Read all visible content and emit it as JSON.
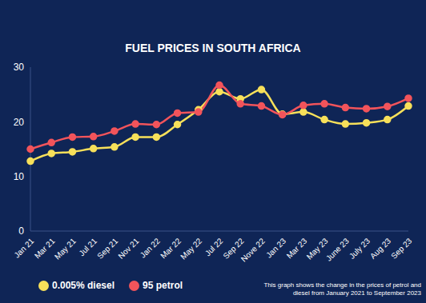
{
  "chart_data": {
    "type": "line",
    "title": "FUEL PRICES IN SOUTH AFRICA",
    "annotation": "This graph shows the change in the prices of petrol and diesel from January 2021 to September 2023",
    "categories": [
      "Jan 21",
      "Mar 21",
      "May 21",
      "Jul 21",
      "Sep 21",
      "Nov 21",
      "Jan 22",
      "Mar 22",
      "May 22",
      "Jul 22",
      "Sep 22",
      "Nove 22",
      "Jan 23",
      "Mar 23",
      "May 23",
      "June 23",
      "July 23",
      "Aug 23",
      "Sep 23"
    ],
    "series": [
      {
        "name": "0.005% diesel",
        "color": "#f7e05a",
        "values": [
          12.8,
          14.2,
          14.5,
          15.1,
          15.4,
          17.2,
          17.2,
          19.5,
          22.2,
          25.5,
          24.2,
          25.9,
          21.4,
          21.8,
          20.4,
          19.6,
          19.8,
          20.4,
          22.9
        ]
      },
      {
        "name": "95 petrol",
        "color": "#f2545b",
        "values": [
          15.0,
          16.2,
          17.2,
          17.3,
          18.3,
          19.6,
          19.5,
          21.6,
          21.8,
          26.7,
          23.3,
          22.9,
          21.3,
          23.0,
          23.3,
          22.6,
          22.4,
          22.8,
          24.3
        ]
      }
    ],
    "ylim": [
      0,
      30
    ],
    "yticks": [
      0,
      10,
      20,
      30
    ],
    "grid": false,
    "legend": "bottom left",
    "marker": "circle"
  }
}
